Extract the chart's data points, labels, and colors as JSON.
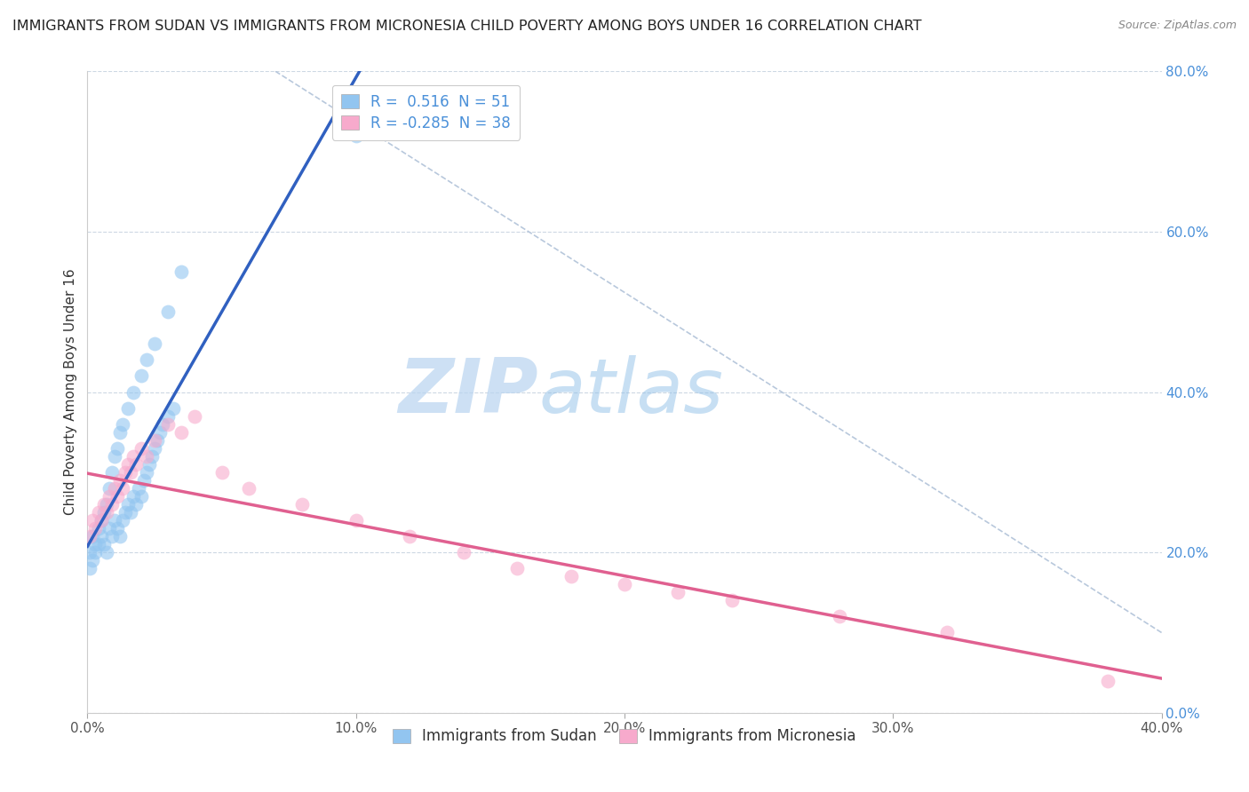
{
  "title": "IMMIGRANTS FROM SUDAN VS IMMIGRANTS FROM MICRONESIA CHILD POVERTY AMONG BOYS UNDER 16 CORRELATION CHART",
  "source": "Source: ZipAtlas.com",
  "ylabel": "Child Poverty Among Boys Under 16",
  "xlabel": "",
  "xlim": [
    0.0,
    0.4
  ],
  "ylim": [
    0.0,
    0.8
  ],
  "xticks": [
    0.0,
    0.1,
    0.2,
    0.3,
    0.4
  ],
  "yticks": [
    0.0,
    0.2,
    0.4,
    0.6,
    0.8
  ],
  "xtick_labels": [
    "0.0%",
    "10.0%",
    "20.0%",
    "30.0%",
    "40.0%"
  ],
  "ytick_labels_right": [
    "0.0%",
    "20.0%",
    "40.0%",
    "60.0%",
    "80.0%"
  ],
  "sudan_R": 0.516,
  "sudan_N": 51,
  "micronesia_R": -0.285,
  "micronesia_N": 38,
  "sudan_color": "#92c5f0",
  "micronesia_color": "#f7aacc",
  "sudan_line_color": "#3060c0",
  "micronesia_line_color": "#e06090",
  "diag_line_color": "#b8c8dc",
  "background_color": "#ffffff",
  "watermark_zip": "ZIP",
  "watermark_atlas": "atlas",
  "legend_label_sudan": "Immigrants from Sudan",
  "legend_label_micronesia": "Immigrants from Micronesia",
  "sudan_x": [
    0.001,
    0.002,
    0.003,
    0.004,
    0.005,
    0.006,
    0.007,
    0.008,
    0.009,
    0.01,
    0.011,
    0.012,
    0.013,
    0.014,
    0.015,
    0.016,
    0.017,
    0.018,
    0.019,
    0.02,
    0.021,
    0.022,
    0.023,
    0.024,
    0.025,
    0.026,
    0.027,
    0.028,
    0.03,
    0.032,
    0.001,
    0.002,
    0.003,
    0.004,
    0.005,
    0.006,
    0.007,
    0.008,
    0.009,
    0.01,
    0.011,
    0.012,
    0.013,
    0.015,
    0.017,
    0.02,
    0.022,
    0.025,
    0.03,
    0.035,
    0.1
  ],
  "sudan_y": [
    0.18,
    0.19,
    0.2,
    0.21,
    0.22,
    0.21,
    0.2,
    0.23,
    0.22,
    0.24,
    0.23,
    0.22,
    0.24,
    0.25,
    0.26,
    0.25,
    0.27,
    0.26,
    0.28,
    0.27,
    0.29,
    0.3,
    0.31,
    0.32,
    0.33,
    0.34,
    0.35,
    0.36,
    0.37,
    0.38,
    0.2,
    0.22,
    0.21,
    0.23,
    0.24,
    0.25,
    0.26,
    0.28,
    0.3,
    0.32,
    0.33,
    0.35,
    0.36,
    0.38,
    0.4,
    0.42,
    0.44,
    0.46,
    0.5,
    0.55,
    0.72
  ],
  "micronesia_x": [
    0.001,
    0.002,
    0.003,
    0.004,
    0.005,
    0.006,
    0.007,
    0.008,
    0.009,
    0.01,
    0.011,
    0.012,
    0.013,
    0.014,
    0.015,
    0.016,
    0.017,
    0.018,
    0.02,
    0.022,
    0.025,
    0.03,
    0.035,
    0.04,
    0.05,
    0.06,
    0.08,
    0.1,
    0.12,
    0.14,
    0.16,
    0.18,
    0.2,
    0.22,
    0.24,
    0.28,
    0.32,
    0.38
  ],
  "micronesia_y": [
    0.22,
    0.24,
    0.23,
    0.25,
    0.24,
    0.26,
    0.25,
    0.27,
    0.26,
    0.28,
    0.27,
    0.29,
    0.28,
    0.3,
    0.31,
    0.3,
    0.32,
    0.31,
    0.33,
    0.32,
    0.34,
    0.36,
    0.35,
    0.37,
    0.3,
    0.28,
    0.26,
    0.24,
    0.22,
    0.2,
    0.18,
    0.17,
    0.16,
    0.15,
    0.14,
    0.12,
    0.1,
    0.04
  ]
}
